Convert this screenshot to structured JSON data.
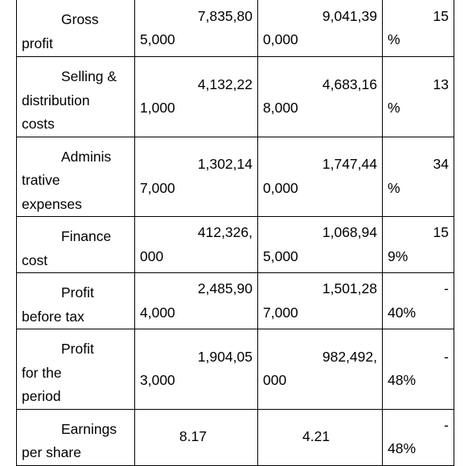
{
  "table": {
    "rows": [
      [
        [
          "Gross",
          "profit"
        ],
        [
          "7,835,80",
          "5,000"
        ],
        [
          "9,041,39",
          "0,000"
        ],
        [
          "15",
          "%"
        ]
      ],
      [
        [
          "Selling &",
          "distribution",
          "costs"
        ],
        [
          "4,132,22",
          "1,000"
        ],
        [
          "4,683,16",
          "8,000"
        ],
        [
          "13",
          "%"
        ]
      ],
      [
        [
          "Adminis",
          "trative",
          "expenses"
        ],
        [
          "1,302,14",
          "7,000"
        ],
        [
          "1,747,44",
          "0,000"
        ],
        [
          "34",
          "%"
        ]
      ],
      [
        [
          "Finance",
          "cost"
        ],
        [
          "412,326,",
          "000"
        ],
        [
          "1,068,94",
          "5,000"
        ],
        [
          "15",
          "9%"
        ]
      ],
      [
        [
          "Profit",
          "before tax"
        ],
        [
          "2,485,90",
          "4,000"
        ],
        [
          "1,501,28",
          "7,000"
        ],
        [
          "-",
          "40%"
        ]
      ],
      [
        [
          "Profit",
          "for the",
          "period"
        ],
        [
          "1,904,05",
          "3,000"
        ],
        [
          "982,492,",
          "000"
        ],
        [
          "-",
          "48%"
        ]
      ],
      [
        [
          "Earnings",
          "per share"
        ],
        [
          "8.17"
        ],
        [
          "4.21"
        ],
        [
          "-",
          "48%"
        ]
      ]
    ]
  }
}
